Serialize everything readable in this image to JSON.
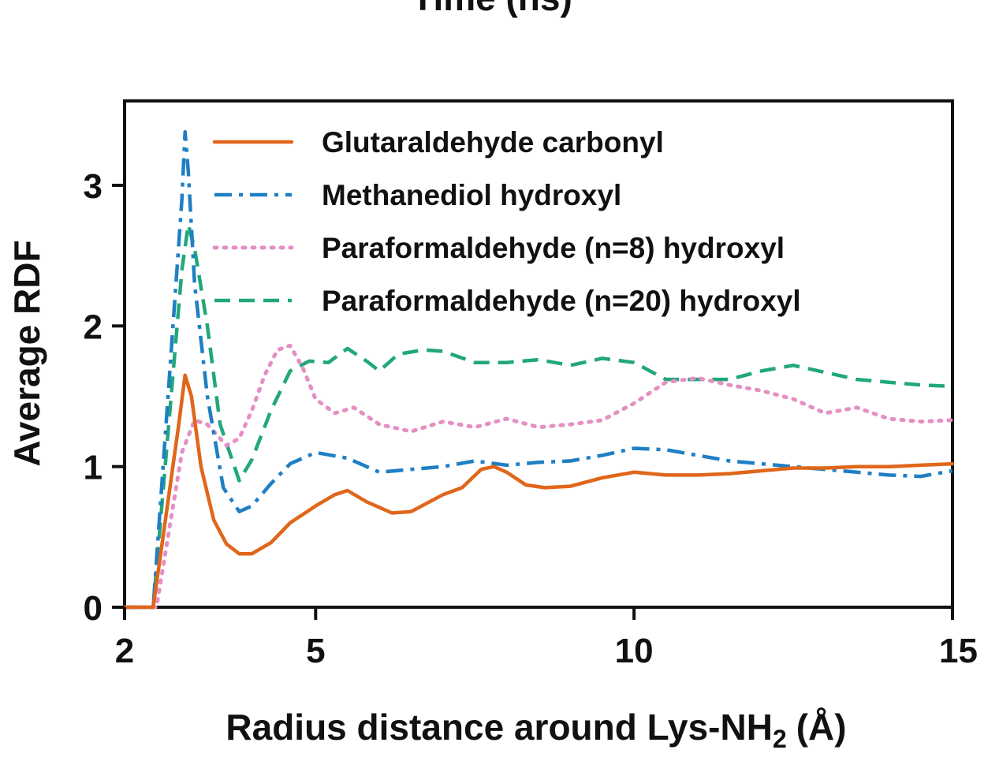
{
  "top_text": "Time (ns)",
  "colors": {
    "glutaraldehyde": "#e0661a",
    "methanediol": "#1f7fc4",
    "paraform8": "#e58fc4",
    "paraform20": "#22a77a"
  },
  "chart_data": {
    "type": "line",
    "title": "",
    "xlabel": "Radius distance around Lys-NH",
    "xlabel_sub": "2",
    "xlabel_unit": "(Å)",
    "ylabel": "Average RDF",
    "xlim": [
      2,
      15
    ],
    "ylim": [
      0,
      3.6
    ],
    "x_ticks": [
      2,
      5,
      10,
      15
    ],
    "y_ticks": [
      0,
      1,
      2,
      3
    ],
    "grid": false,
    "legend_position": "top",
    "series": [
      {
        "name": "Glutaraldehyde carbonyl",
        "color_key": "glutaraldehyde",
        "dash": "solid",
        "x": [
          2.0,
          2.45,
          2.85,
          2.95,
          3.05,
          3.2,
          3.4,
          3.6,
          3.8,
          4.0,
          4.3,
          4.6,
          5.0,
          5.3,
          5.5,
          5.8,
          6.2,
          6.5,
          7.0,
          7.3,
          7.6,
          7.8,
          8.0,
          8.3,
          8.6,
          9.0,
          9.5,
          10.0,
          10.5,
          11.0,
          11.5,
          12.0,
          12.5,
          13.0,
          13.5,
          14.0,
          14.5,
          15.0
        ],
        "y": [
          0.0,
          0.0,
          1.3,
          1.65,
          1.5,
          1.0,
          0.62,
          0.45,
          0.38,
          0.38,
          0.46,
          0.6,
          0.72,
          0.8,
          0.83,
          0.75,
          0.67,
          0.68,
          0.8,
          0.85,
          0.98,
          1.0,
          0.96,
          0.87,
          0.85,
          0.86,
          0.92,
          0.96,
          0.94,
          0.94,
          0.95,
          0.97,
          0.99,
          0.99,
          1.0,
          1.0,
          1.01,
          1.02
        ]
      },
      {
        "name": "Methanediol hydroxyl",
        "color_key": "methanediol",
        "dash": "dashdot",
        "x": [
          2.0,
          2.45,
          2.9,
          2.95,
          3.0,
          3.1,
          3.3,
          3.55,
          3.8,
          4.0,
          4.3,
          4.6,
          5.0,
          5.5,
          6.0,
          6.5,
          7.0,
          7.5,
          8.0,
          8.5,
          9.0,
          9.5,
          10.0,
          10.5,
          11.0,
          11.5,
          12.0,
          12.5,
          13.0,
          13.5,
          14.0,
          14.5,
          15.0
        ],
        "y": [
          0.0,
          0.0,
          2.9,
          3.38,
          3.1,
          2.3,
          1.5,
          0.85,
          0.68,
          0.72,
          0.88,
          1.02,
          1.1,
          1.06,
          0.96,
          0.98,
          1.0,
          1.04,
          1.01,
          1.03,
          1.04,
          1.08,
          1.13,
          1.12,
          1.08,
          1.04,
          1.02,
          1.0,
          0.98,
          0.96,
          0.94,
          0.93,
          0.97
        ]
      },
      {
        "name": "Paraformaldehyde (n=8) hydroxyl",
        "color_key": "paraform8",
        "dash": "dotted",
        "x": [
          2.0,
          2.5,
          2.9,
          3.1,
          3.3,
          3.6,
          3.8,
          4.0,
          4.2,
          4.4,
          4.6,
          4.8,
          5.0,
          5.3,
          5.6,
          6.0,
          6.5,
          7.0,
          7.5,
          8.0,
          8.5,
          9.0,
          9.5,
          10.0,
          10.5,
          11.0,
          11.5,
          12.0,
          12.5,
          13.0,
          13.5,
          14.0,
          14.5,
          15.0
        ],
        "y": [
          0.0,
          0.0,
          1.1,
          1.33,
          1.3,
          1.15,
          1.2,
          1.4,
          1.65,
          1.83,
          1.86,
          1.7,
          1.48,
          1.38,
          1.42,
          1.3,
          1.25,
          1.32,
          1.28,
          1.34,
          1.28,
          1.3,
          1.33,
          1.45,
          1.6,
          1.63,
          1.58,
          1.54,
          1.48,
          1.38,
          1.42,
          1.34,
          1.32,
          1.33
        ]
      },
      {
        "name": "Paraformaldehyde (n=20) hydroxyl",
        "color_key": "paraform20",
        "dash": "dashed",
        "x": [
          2.0,
          2.45,
          2.9,
          3.0,
          3.1,
          3.3,
          3.5,
          3.8,
          4.0,
          4.3,
          4.6,
          4.9,
          5.2,
          5.5,
          5.8,
          6.0,
          6.3,
          6.7,
          7.0,
          7.5,
          8.0,
          8.5,
          9.0,
          9.5,
          10.0,
          10.5,
          11.0,
          11.5,
          12.0,
          12.5,
          13.0,
          13.5,
          14.0,
          14.5,
          15.0
        ],
        "y": [
          0.0,
          0.0,
          2.4,
          2.72,
          2.55,
          2.0,
          1.3,
          0.9,
          1.05,
          1.4,
          1.68,
          1.75,
          1.74,
          1.84,
          1.75,
          1.68,
          1.8,
          1.83,
          1.82,
          1.74,
          1.74,
          1.76,
          1.72,
          1.77,
          1.74,
          1.62,
          1.62,
          1.62,
          1.68,
          1.72,
          1.67,
          1.62,
          1.6,
          1.58,
          1.57
        ]
      }
    ]
  }
}
